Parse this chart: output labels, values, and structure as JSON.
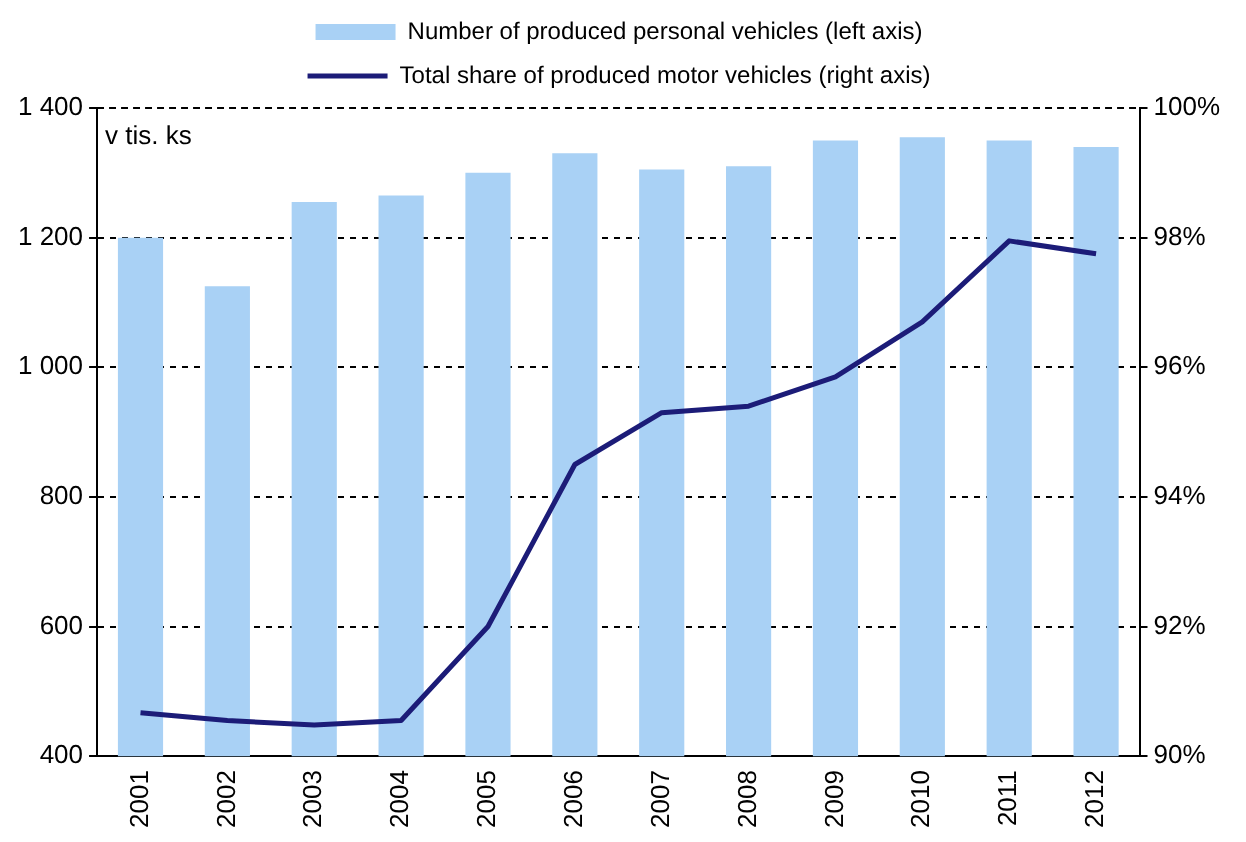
{
  "chart_data": {
    "type": "bar",
    "ylabel": "v tis. ks",
    "categories": [
      "2001",
      "2002",
      "2003",
      "2004",
      "2005",
      "2006",
      "2007",
      "2008",
      "2009",
      "2010",
      "2011",
      "2012"
    ],
    "series": [
      {
        "name": "Number of produced personal vehicles (left axis)",
        "color": "#a9d1f5",
        "values": [
          1200,
          1125,
          1255,
          1265,
          1300,
          1330,
          1305,
          1310,
          1350,
          1355,
          1350,
          1340
        ]
      },
      {
        "name": "Total share of produced motor vehicles (right axis)",
        "type": "line",
        "axis": "y2",
        "color": "#1c1c78",
        "values": [
          90.67,
          90.55,
          90.48,
          90.55,
          92.0,
          94.5,
          95.3,
          95.4,
          95.85,
          96.7,
          97.95,
          97.75
        ]
      }
    ],
    "ylim": [
      400,
      1400
    ],
    "yticks": [
      400,
      600,
      800,
      {
        "value": 1000,
        "label": "1 000"
      },
      {
        "value": 1200,
        "label": "1 200"
      },
      {
        "value": 1400,
        "label": "1 400"
      }
    ],
    "y2lim": [
      90,
      100
    ],
    "y2ticks": [
      {
        "value": 90,
        "label": "90%"
      },
      {
        "value": 92,
        "label": "92%"
      },
      {
        "value": 94,
        "label": "94%"
      },
      {
        "value": 96,
        "label": "96%"
      },
      {
        "value": 98,
        "label": "98%"
      },
      {
        "value": 100,
        "label": "100%"
      }
    ],
    "grid": "y",
    "legend": "top",
    "marker": "none",
    "line_style": "solid"
  }
}
